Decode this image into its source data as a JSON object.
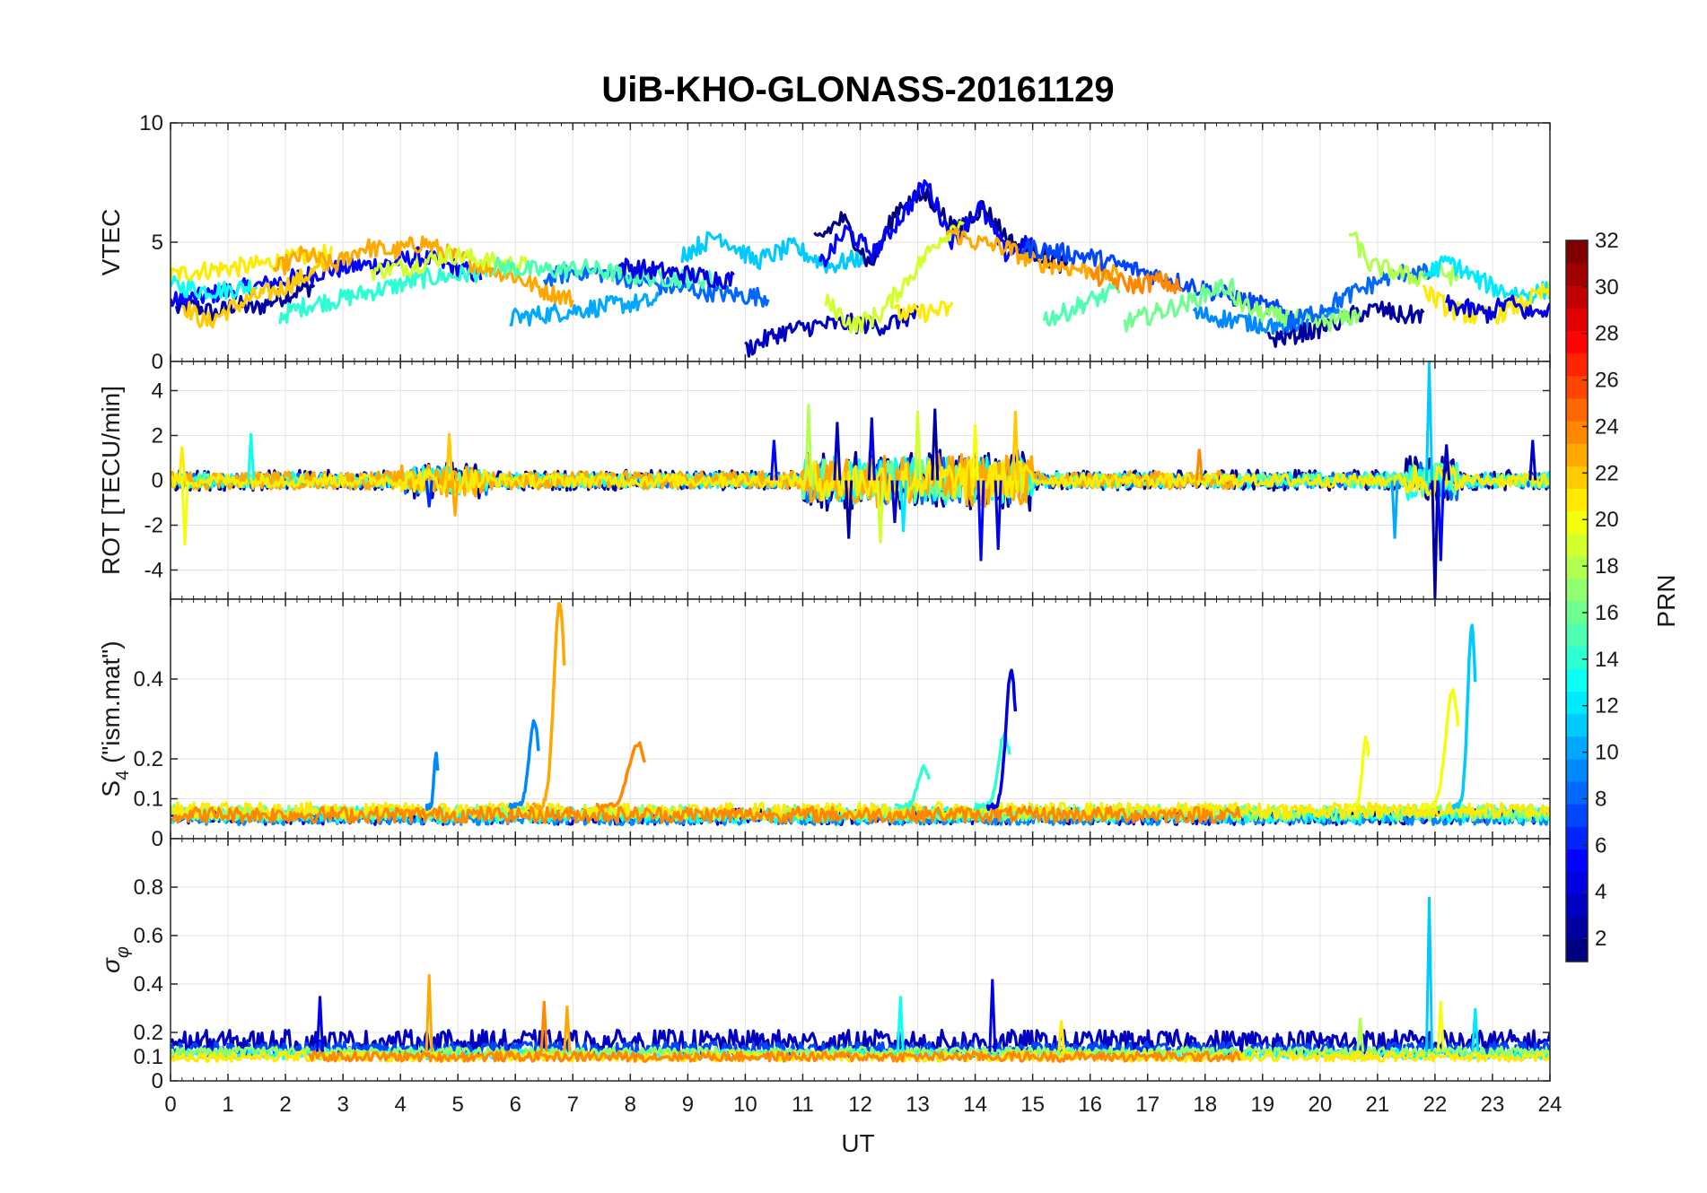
{
  "chart_data": {
    "type": "line",
    "title": "UiB-KHO-GLONASS-20161129",
    "x_label": "UT",
    "x_range": [
      0,
      24
    ],
    "x_ticks": [
      "0",
      "1",
      "2",
      "3",
      "4",
      "5",
      "6",
      "7",
      "8",
      "9",
      "10",
      "11",
      "12",
      "13",
      "14",
      "15",
      "16",
      "17",
      "18",
      "19",
      "20",
      "21",
      "22",
      "23",
      "24"
    ],
    "grid": true,
    "colorbar": {
      "label": "PRN",
      "range": [
        1,
        32
      ],
      "colormap": "jet",
      "ticks": [
        "2",
        "4",
        "6",
        "8",
        "10",
        "12",
        "14",
        "16",
        "18",
        "20",
        "22",
        "24",
        "26",
        "28",
        "30",
        "32"
      ]
    },
    "panels": [
      {
        "id": "vtec",
        "ylabel": "VTEC",
        "ylim": [
          0,
          10
        ],
        "yticks": [
          {
            "v": 0,
            "label": "0"
          },
          {
            "v": 5,
            "label": "5"
          },
          {
            "v": 10,
            "label": "10"
          }
        ],
        "series": [
          {
            "prn": 2,
            "start": 0.1,
            "end": 2.5,
            "profile": [
              2.2,
              2.3,
              2.0,
              2.4,
              2.2,
              2.6,
              2.9,
              3.2
            ]
          },
          {
            "prn": 5,
            "start": 0.0,
            "end": 5.4,
            "profile": [
              2.5,
              2.7,
              3.0,
              3.2,
              3.5,
              3.8,
              4.0,
              4.1,
              4.4,
              4.0,
              3.6
            ]
          },
          {
            "prn": 21,
            "start": 0.0,
            "end": 2.8,
            "profile": [
              3.6,
              3.8,
              3.9,
              4.0,
              4.2,
              4.4,
              4.5
            ]
          },
          {
            "prn": 13,
            "start": 0.0,
            "end": 1.5,
            "profile": [
              3.2,
              3.0,
              3.0,
              3.2
            ]
          },
          {
            "prn": 22,
            "start": 0.2,
            "end": 2.7,
            "profile": [
              2.4,
              1.6,
              2.2,
              2.7,
              3.0,
              3.5,
              4.0
            ]
          },
          {
            "prn": 14,
            "start": 1.9,
            "end": 5.5,
            "profile": [
              1.9,
              2.4,
              2.6,
              2.9,
              3.2,
              3.5,
              3.6,
              3.8
            ]
          },
          {
            "prn": 23,
            "start": 1.8,
            "end": 7.0,
            "profile": [
              3.8,
              4.5,
              4.0,
              4.8,
              4.6,
              5.0,
              4.4,
              4.0,
              3.6,
              3.0,
              2.6
            ]
          },
          {
            "prn": 19,
            "start": 3.5,
            "end": 6.2,
            "profile": [
              3.8,
              4.0,
              4.5,
              4.2,
              4.0
            ]
          },
          {
            "prn": 10,
            "start": 5.9,
            "end": 8.5,
            "profile": [
              1.8,
              2.0,
              2.2,
              2.4,
              2.5
            ]
          },
          {
            "prn": 8,
            "start": 6.5,
            "end": 10.4,
            "profile": [
              3.5,
              3.8,
              3.6,
              3.2,
              3.0,
              2.8,
              2.7
            ]
          },
          {
            "prn": 15,
            "start": 5.6,
            "end": 9.6,
            "profile": [
              4.0,
              3.8,
              3.9,
              3.6,
              3.5,
              3.4
            ]
          },
          {
            "prn": 4,
            "start": 7.8,
            "end": 9.8,
            "profile": [
              4.0,
              3.8,
              3.6,
              3.4
            ]
          },
          {
            "prn": 11,
            "start": 8.9,
            "end": 12.1,
            "profile": [
              4.5,
              5.3,
              4.2,
              4.8,
              4.0,
              4.4
            ]
          },
          {
            "prn": 3,
            "start": 10.0,
            "end": 13.0,
            "profile": [
              0.5,
              1.2,
              1.5,
              1.6,
              1.5,
              2.0
            ]
          },
          {
            "prn": 1,
            "start": 11.2,
            "end": 15.6,
            "profile": [
              5.0,
              6.0,
              4.0,
              6.5,
              7.0,
              5.5,
              6.5,
              5.0,
              4.5,
              4.0
            ]
          },
          {
            "prn": 5,
            "start": 11.3,
            "end": 15.0,
            "profile": [
              4.0,
              5.5,
              4.5,
              6.0,
              7.5,
              5.0,
              6.5,
              4.5,
              5.0
            ]
          },
          {
            "prn": 19,
            "start": 11.4,
            "end": 13.8,
            "profile": [
              2.5,
              1.5,
              2.0,
              3.5,
              5.0,
              6.0
            ]
          },
          {
            "prn": 21,
            "start": 12.6,
            "end": 13.6,
            "profile": [
              2.0,
              2.0,
              2.1,
              2.2
            ]
          },
          {
            "prn": 23,
            "start": 13.5,
            "end": 16.5,
            "profile": [
              5.5,
              5.0,
              4.8,
              4.2,
              4.0,
              3.8,
              3.6
            ]
          },
          {
            "prn": 7,
            "start": 14.8,
            "end": 19.5,
            "profile": [
              4.8,
              4.6,
              4.4,
              4.0,
              3.6,
              3.2,
              2.8,
              2.4,
              2.0
            ]
          },
          {
            "prn": 15,
            "start": 15.2,
            "end": 16.5,
            "profile": [
              1.8,
              2.0,
              2.4,
              2.7,
              3.0
            ]
          },
          {
            "prn": 16,
            "start": 16.6,
            "end": 18.5,
            "profile": [
              1.6,
              1.9,
              2.2,
              2.5,
              3.0,
              3.2
            ]
          },
          {
            "prn": 24,
            "start": 16.0,
            "end": 17.6,
            "profile": [
              3.6,
              3.4,
              3.2,
              3.4,
              3.0
            ]
          },
          {
            "prn": 9,
            "start": 17.8,
            "end": 20.5,
            "profile": [
              2.0,
              1.8,
              1.6,
              1.5,
              1.7,
              2.0
            ]
          },
          {
            "prn": 2,
            "start": 19.1,
            "end": 21.8,
            "profile": [
              0.9,
              1.1,
              1.3,
              1.6,
              2.0,
              2.2,
              1.9,
              2.0
            ]
          },
          {
            "prn": 17,
            "start": 18.4,
            "end": 20.7,
            "profile": [
              2.8,
              2.2,
              1.9,
              1.8,
              1.6,
              1.7,
              2.0
            ]
          },
          {
            "prn": 8,
            "start": 19.4,
            "end": 22.0,
            "profile": [
              1.5,
              2.0,
              2.5,
              3.0,
              3.5,
              3.8,
              3.6
            ]
          },
          {
            "prn": 18,
            "start": 20.5,
            "end": 22.4,
            "profile": [
              5.5,
              4.0,
              3.8,
              3.5,
              3.8,
              3.5
            ]
          },
          {
            "prn": 12,
            "start": 21.8,
            "end": 24.0,
            "profile": [
              3.6,
              4.2,
              3.5,
              3.0,
              2.8,
              3.0
            ]
          },
          {
            "prn": 21,
            "start": 21.8,
            "end": 24.0,
            "profile": [
              3.0,
              2.2,
              1.9,
              2.0,
              2.5,
              3.0
            ]
          },
          {
            "prn": 4,
            "start": 22.2,
            "end": 24.0,
            "profile": [
              2.4,
              2.2,
              2.0,
              2.5,
              2.0,
              2.2
            ]
          }
        ]
      },
      {
        "id": "rot",
        "ylabel": "ROT [TECU/min]",
        "ylim": [
          -5.3,
          5.3
        ],
        "yticks": [
          {
            "v": -4,
            "label": "-4"
          },
          {
            "v": -2,
            "label": "-2"
          },
          {
            "v": 0,
            "label": "0"
          },
          {
            "v": 2,
            "label": "2"
          },
          {
            "v": 4,
            "label": "4"
          }
        ],
        "series": [
          {
            "prn": 2,
            "start": 0.0,
            "end": 24.0,
            "amp": 0.45
          },
          {
            "prn": 8,
            "start": 0.0,
            "end": 24.0,
            "amp": 0.35
          },
          {
            "prn": 13,
            "start": 0.0,
            "end": 24.0,
            "amp": 0.35
          },
          {
            "prn": 16,
            "start": 0.0,
            "end": 24.0,
            "amp": 0.3
          },
          {
            "prn": 23,
            "start": 0.0,
            "end": 18.6,
            "amp": 0.4
          },
          {
            "prn": 21,
            "start": 0.0,
            "end": 24.0,
            "amp": 0.3
          }
        ],
        "spikes": [
          {
            "prn": 20,
            "x": 0.25,
            "y": -2.9
          },
          {
            "prn": 21,
            "x": 0.2,
            "y": 1.5
          },
          {
            "prn": 13,
            "x": 1.4,
            "y": 2.1
          },
          {
            "prn": 22,
            "x": 4.85,
            "y": 2.1
          },
          {
            "prn": 23,
            "x": 4.95,
            "y": -1.6
          },
          {
            "prn": 6,
            "x": 4.5,
            "y": -1.2
          },
          {
            "prn": 5,
            "x": 10.5,
            "y": 1.8
          },
          {
            "prn": 18,
            "x": 11.1,
            "y": 3.4
          },
          {
            "prn": 3,
            "x": 11.6,
            "y": 2.6
          },
          {
            "prn": 2,
            "x": 11.8,
            "y": -2.6
          },
          {
            "prn": 4,
            "x": 12.2,
            "y": 2.8
          },
          {
            "prn": 19,
            "x": 12.35,
            "y": -2.8
          },
          {
            "prn": 3,
            "x": 12.6,
            "y": -1.9
          },
          {
            "prn": 12,
            "x": 12.75,
            "y": -2.3
          },
          {
            "prn": 19,
            "x": 13.0,
            "y": 3.1
          },
          {
            "prn": 2,
            "x": 13.3,
            "y": 3.2
          },
          {
            "prn": 5,
            "x": 14.1,
            "y": -3.6
          },
          {
            "prn": 4,
            "x": 14.4,
            "y": -3.1
          },
          {
            "prn": 22,
            "x": 14.7,
            "y": 3.1
          },
          {
            "prn": 20,
            "x": 14.0,
            "y": 2.5
          },
          {
            "prn": 24,
            "x": 17.9,
            "y": 1.4
          },
          {
            "prn": 10,
            "x": 21.3,
            "y": -2.6
          },
          {
            "prn": 11,
            "x": 21.9,
            "y": 5.3
          },
          {
            "prn": 2,
            "x": 22.0,
            "y": -5.3
          },
          {
            "prn": 5,
            "x": 22.1,
            "y": -3.6
          },
          {
            "prn": 3,
            "x": 22.2,
            "y": 1.6
          },
          {
            "prn": 3,
            "x": 23.7,
            "y": 1.8
          }
        ]
      },
      {
        "id": "s4",
        "ylabel": "S4 (\"ism.mat\")",
        "ylim": [
          0,
          0.6
        ],
        "yticks": [
          {
            "v": 0,
            "label": "0"
          },
          {
            "v": 0.1,
            "label": "0.1"
          },
          {
            "v": 0.2,
            "label": "0.2"
          },
          {
            "v": 0.4,
            "label": "0.4"
          }
        ],
        "series": [
          {
            "prn": 3,
            "start": 0.0,
            "end": 24.0,
            "base": 0.055,
            "amp": 0.02
          },
          {
            "prn": 9,
            "start": 0.0,
            "end": 24.0,
            "base": 0.05,
            "amp": 0.015
          },
          {
            "prn": 13,
            "start": 0.0,
            "end": 24.0,
            "base": 0.06,
            "amp": 0.02
          },
          {
            "prn": 17,
            "start": 0.0,
            "end": 24.0,
            "base": 0.065,
            "amp": 0.02
          },
          {
            "prn": 21,
            "start": 0.0,
            "end": 24.0,
            "base": 0.07,
            "amp": 0.02
          },
          {
            "prn": 24,
            "start": 0.0,
            "end": 18.6,
            "base": 0.06,
            "amp": 0.02
          }
        ],
        "peaks": [
          {
            "prn": 9,
            "x0": 4.45,
            "x1": 4.65,
            "peak": 0.21
          },
          {
            "prn": 9,
            "x0": 5.9,
            "x1": 6.4,
            "peak": 0.29
          },
          {
            "prn": 23,
            "x0": 6.3,
            "x1": 6.85,
            "peak": 0.59
          },
          {
            "prn": 24,
            "x0": 7.4,
            "x1": 8.25,
            "peak": 0.24
          },
          {
            "prn": 14,
            "x0": 12.6,
            "x1": 13.2,
            "peak": 0.18
          },
          {
            "prn": 14,
            "x0": 14.0,
            "x1": 14.6,
            "peak": 0.26
          },
          {
            "prn": 4,
            "x0": 14.2,
            "x1": 14.7,
            "peak": 0.42
          },
          {
            "prn": 20,
            "x0": 20.5,
            "x1": 20.85,
            "peak": 0.25
          },
          {
            "prn": 20,
            "x0": 21.75,
            "x1": 22.4,
            "peak": 0.37
          },
          {
            "prn": 11,
            "x0": 22.3,
            "x1": 22.7,
            "peak": 0.53
          }
        ]
      },
      {
        "id": "sigma",
        "ylabel": "σφ",
        "ylim": [
          0,
          1
        ],
        "yticks": [
          {
            "v": 0,
            "label": "0"
          },
          {
            "v": 0.1,
            "label": "0.1"
          },
          {
            "v": 0.2,
            "label": "0.2"
          },
          {
            "v": 0.4,
            "label": "0.4"
          },
          {
            "v": 0.6,
            "label": "0.6"
          },
          {
            "v": 0.8,
            "label": "0.8"
          }
        ],
        "series": [
          {
            "prn": 3,
            "start": 0.0,
            "end": 24.0,
            "base": 0.16,
            "amp": 0.05
          },
          {
            "prn": 7,
            "start": 0.0,
            "end": 24.0,
            "base": 0.13,
            "amp": 0.03
          },
          {
            "prn": 13,
            "start": 0.0,
            "end": 24.0,
            "base": 0.11,
            "amp": 0.02
          },
          {
            "prn": 17,
            "start": 0.0,
            "end": 24.0,
            "base": 0.12,
            "amp": 0.02
          },
          {
            "prn": 21,
            "start": 0.0,
            "end": 24.0,
            "base": 0.1,
            "amp": 0.02
          },
          {
            "prn": 24,
            "start": 2.4,
            "end": 18.6,
            "base": 0.1,
            "amp": 0.02
          }
        ],
        "spikes": [
          {
            "prn": 4,
            "x": 2.6,
            "y": 0.35
          },
          {
            "prn": 23,
            "x": 4.5,
            "y": 0.44
          },
          {
            "prn": 24,
            "x": 6.5,
            "y": 0.33
          },
          {
            "prn": 23,
            "x": 6.9,
            "y": 0.31
          },
          {
            "prn": 4,
            "x": 14.3,
            "y": 0.42
          },
          {
            "prn": 13,
            "x": 12.7,
            "y": 0.35
          },
          {
            "prn": 21,
            "x": 15.5,
            "y": 0.25
          },
          {
            "prn": 11,
            "x": 21.9,
            "y": 0.76
          },
          {
            "prn": 20,
            "x": 22.1,
            "y": 0.33
          },
          {
            "prn": 12,
            "x": 22.7,
            "y": 0.3
          },
          {
            "prn": 18,
            "x": 20.7,
            "y": 0.26
          }
        ]
      }
    ]
  }
}
